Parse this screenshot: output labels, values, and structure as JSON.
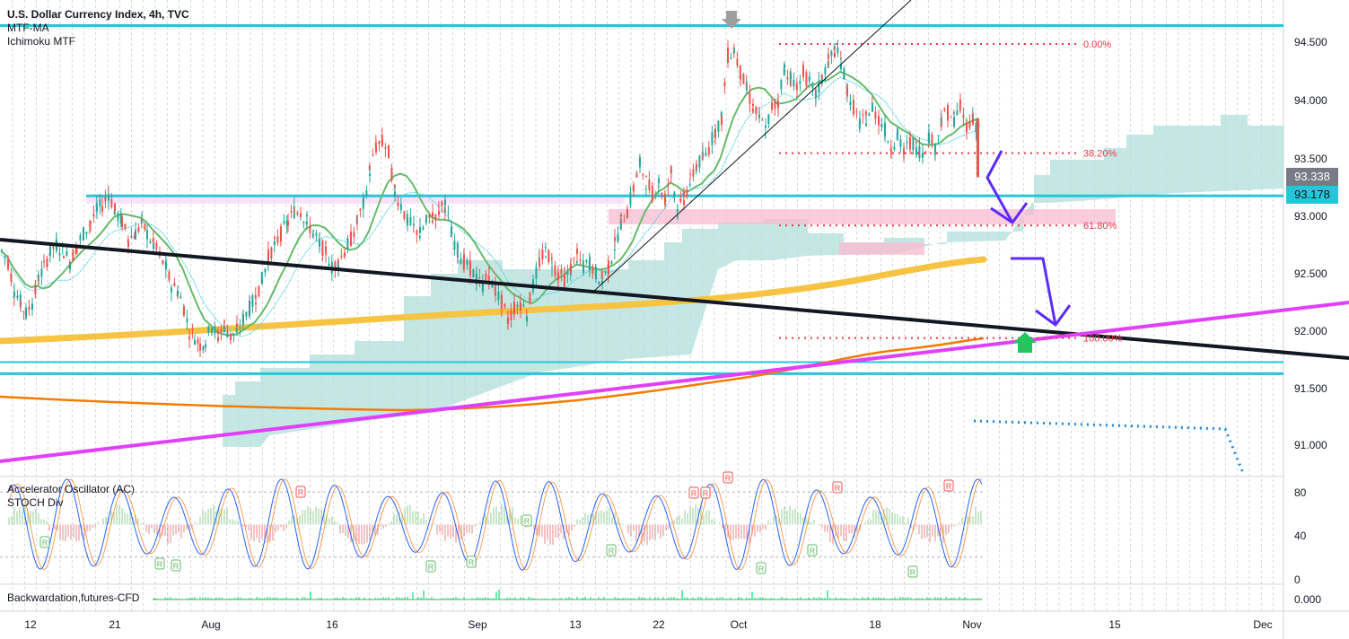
{
  "legend": {
    "symbol": "U.S. Dollar Currency Index, 4h, TVC",
    "indicators": [
      "MTF-MA",
      "Ichimoku MTF"
    ]
  },
  "sub_panes": {
    "oscillator": [
      "Accelerator Oscillator (AC)",
      "STOCH Div"
    ],
    "backwardation": "Backwardation,futures-CFD"
  },
  "price_tags": [
    {
      "value": "93.338",
      "bg": "#787b86",
      "fg": "#ffffff"
    },
    {
      "value": "93.178",
      "bg": "#26c6da",
      "fg": "#131722"
    }
  ],
  "fib_levels": [
    {
      "label": "0.00%",
      "price": 94.5
    },
    {
      "label": "38.20%",
      "price": 93.55
    },
    {
      "label": "61.80%",
      "price": 92.92
    },
    {
      "label": "100.00%",
      "price": 91.94
    }
  ],
  "osc_signal_label": "R",
  "colors": {
    "cyan_line": "#26c6da",
    "trend_black": "#131722",
    "magenta": "#e040fb",
    "ma_yellow": "#f6c343",
    "ma_orange": "#f57c00",
    "ma_green": "#66bb6a",
    "fib_red": "#f23645",
    "arrow_blue": "#5b2bff",
    "cloud": "#b2dfdb",
    "zone_pink": "#f8bbd0"
  },
  "chart_data": {
    "type": "line",
    "title": "U.S. Dollar Currency Index, 4h, TVC",
    "x_tick_labels": [
      "12",
      "21",
      "Aug",
      "16",
      "Sep",
      "13",
      "22",
      "Oct",
      "18",
      "Nov",
      "15",
      "Dec"
    ],
    "y_tick_labels": [
      "94.500",
      "94.000",
      "93.500",
      "93.000",
      "92.500",
      "92.000",
      "91.500",
      "91.000"
    ],
    "ylim": [
      90.75,
      95.05
    ],
    "last_price": 93.338,
    "level_price": 93.178,
    "oscillator_ticks": [
      "80",
      "40",
      "0"
    ],
    "oscillator_ylim": [
      0,
      100
    ],
    "backwardation_ticks": [
      "0.000"
    ],
    "horizontal_levels": [
      94.66,
      93.178,
      91.73,
      91.63
    ],
    "price_path": [
      [
        1,
        92.7
      ],
      [
        8,
        92.6
      ],
      [
        15,
        92.35
      ],
      [
        22,
        92.25
      ],
      [
        28,
        92.15
      ],
      [
        35,
        92.25
      ],
      [
        42,
        92.45
      ],
      [
        48,
        92.55
      ],
      [
        55,
        92.7
      ],
      [
        62,
        92.75
      ],
      [
        70,
        92.7
      ],
      [
        77,
        92.6
      ],
      [
        85,
        92.75
      ],
      [
        92,
        92.85
      ],
      [
        100,
        92.95
      ],
      [
        107,
        93.05
      ],
      [
        113,
        93.1
      ],
      [
        120,
        93.2
      ],
      [
        127,
        93.05
      ],
      [
        135,
        92.95
      ],
      [
        142,
        92.8
      ],
      [
        150,
        92.85
      ],
      [
        157,
        92.95
      ],
      [
        163,
        92.85
      ],
      [
        170,
        92.75
      ],
      [
        177,
        92.65
      ],
      [
        184,
        92.55
      ],
      [
        190,
        92.4
      ],
      [
        197,
        92.35
      ],
      [
        204,
        92.2
      ],
      [
        210,
        92.0
      ],
      [
        216,
        91.95
      ],
      [
        222,
        91.88
      ],
      [
        228,
        91.92
      ],
      [
        235,
        92.05
      ],
      [
        242,
        91.95
      ],
      [
        249,
        92.05
      ],
      [
        256,
        91.95
      ],
      [
        263,
        92.0
      ],
      [
        270,
        92.1
      ],
      [
        277,
        92.2
      ],
      [
        284,
        92.3
      ],
      [
        291,
        92.45
      ],
      [
        298,
        92.65
      ],
      [
        305,
        92.75
      ],
      [
        312,
        92.85
      ],
      [
        320,
        92.95
      ],
      [
        327,
        93.05
      ],
      [
        334,
        93.05
      ],
      [
        341,
        92.95
      ],
      [
        348,
        92.85
      ],
      [
        355,
        92.75
      ],
      [
        362,
        92.7
      ],
      [
        369,
        92.55
      ],
      [
        376,
        92.6
      ],
      [
        383,
        92.7
      ],
      [
        390,
        92.8
      ],
      [
        397,
        92.95
      ],
      [
        404,
        93.1
      ],
      [
        411,
        93.4
      ],
      [
        418,
        93.6
      ],
      [
        425,
        93.65
      ],
      [
        432,
        93.55
      ],
      [
        439,
        93.2
      ],
      [
        446,
        93.1
      ],
      [
        453,
        92.95
      ],
      [
        460,
        92.9
      ],
      [
        467,
        92.85
      ],
      [
        474,
        92.95
      ],
      [
        481,
        93.0
      ],
      [
        488,
        93.05
      ],
      [
        495,
        93.1
      ],
      [
        502,
        92.85
      ],
      [
        509,
        92.7
      ],
      [
        516,
        92.6
      ],
      [
        523,
        92.55
      ],
      [
        530,
        92.45
      ],
      [
        537,
        92.4
      ],
      [
        544,
        92.5
      ],
      [
        551,
        92.35
      ],
      [
        558,
        92.25
      ],
      [
        565,
        92.1
      ],
      [
        572,
        92.2
      ],
      [
        579,
        92.25
      ],
      [
        586,
        92.15
      ],
      [
        593,
        92.4
      ],
      [
        600,
        92.6
      ],
      [
        607,
        92.7
      ],
      [
        614,
        92.6
      ],
      [
        621,
        92.5
      ],
      [
        628,
        92.45
      ],
      [
        635,
        92.55
      ],
      [
        642,
        92.65
      ],
      [
        649,
        92.55
      ],
      [
        656,
        92.6
      ],
      [
        663,
        92.5
      ],
      [
        670,
        92.45
      ],
      [
        677,
        92.55
      ],
      [
        684,
        92.75
      ],
      [
        691,
        92.95
      ],
      [
        698,
        93.05
      ],
      [
        705,
        93.25
      ],
      [
        712,
        93.45
      ],
      [
        719,
        93.3
      ],
      [
        726,
        93.2
      ],
      [
        733,
        93.3
      ],
      [
        740,
        93.15
      ],
      [
        747,
        93.4
      ],
      [
        754,
        93.05
      ],
      [
        761,
        93.15
      ],
      [
        768,
        93.3
      ],
      [
        775,
        93.45
      ],
      [
        782,
        93.5
      ],
      [
        789,
        93.6
      ],
      [
        796,
        93.75
      ],
      [
        803,
        93.85
      ],
      [
        810,
        94.4
      ],
      [
        817,
        94.45
      ],
      [
        824,
        94.25
      ],
      [
        831,
        94.1
      ],
      [
        838,
        93.95
      ],
      [
        845,
        93.85
      ],
      [
        852,
        93.75
      ],
      [
        859,
        93.95
      ],
      [
        866,
        94.0
      ],
      [
        873,
        94.3
      ],
      [
        880,
        94.2
      ],
      [
        887,
        94.1
      ],
      [
        894,
        94.25
      ],
      [
        901,
        94.15
      ],
      [
        908,
        94.05
      ],
      [
        915,
        94.2
      ],
      [
        922,
        94.35
      ],
      [
        929,
        94.45
      ],
      [
        936,
        94.35
      ],
      [
        943,
        94.1
      ],
      [
        950,
        93.95
      ],
      [
        957,
        93.8
      ],
      [
        964,
        93.85
      ],
      [
        971,
        93.95
      ],
      [
        978,
        93.85
      ],
      [
        985,
        93.75
      ],
      [
        992,
        93.6
      ],
      [
        999,
        93.7
      ],
      [
        1006,
        93.55
      ],
      [
        1013,
        93.65
      ],
      [
        1020,
        93.6
      ],
      [
        1027,
        93.55
      ],
      [
        1034,
        93.7
      ],
      [
        1041,
        93.6
      ],
      [
        1048,
        93.85
      ],
      [
        1055,
        93.9
      ],
      [
        1062,
        93.85
      ],
      [
        1069,
        93.95
      ],
      [
        1076,
        93.8
      ],
      [
        1083,
        93.85
      ],
      [
        1089,
        93.75
      ],
      [
        1091,
        93.34
      ]
    ]
  }
}
